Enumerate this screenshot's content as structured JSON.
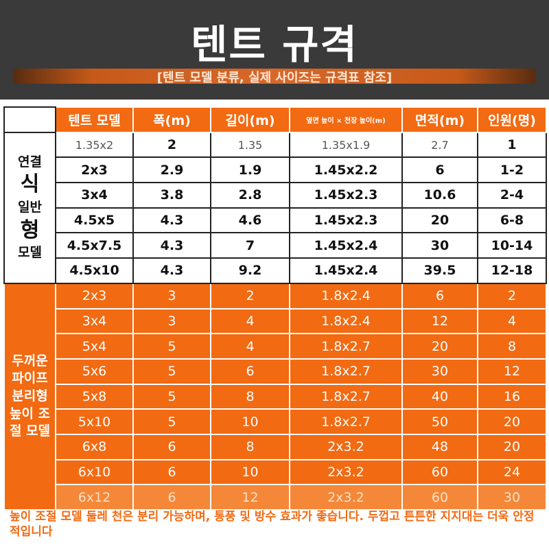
{
  "header": {
    "title": "텐트 규격",
    "subtitle": "[텐트 모델 분류, 실제 사이즈는 규격표 참조]"
  },
  "table": {
    "columns": [
      "텐트 모델",
      "폭(m)",
      "길이(m)",
      "옆면 높이 × 천장 높이(m)",
      "면적(m)",
      "인원(명)"
    ],
    "group1_label_lines": [
      "연결",
      "식",
      "일반",
      "형",
      "모델"
    ],
    "group2_label_lines": [
      "두꺼운",
      "파이프",
      "분리형",
      "높이 조",
      "절 모델"
    ],
    "group1_rows": [
      [
        "1.35x2",
        "2",
        "1.35",
        "1.35x1.9",
        "2.7",
        "1"
      ],
      [
        "2x3",
        "2.9",
        "1.9",
        "1.45x2.2",
        "6",
        "1-2"
      ],
      [
        "3x4",
        "3.8",
        "2.8",
        "1.45x2.3",
        "10.6",
        "2-4"
      ],
      [
        "4.5x5",
        "4.3",
        "4.6",
        "1.45x2.3",
        "20",
        "6-8"
      ],
      [
        "4.5x7.5",
        "4.3",
        "7",
        "1.45x2.4",
        "30",
        "10-14"
      ],
      [
        "4.5x10",
        "4.3",
        "9.2",
        "1.45x2.4",
        "39.5",
        "12-18"
      ]
    ],
    "group2_rows": [
      [
        "2x3",
        "3",
        "2",
        "1.8x2.4",
        "6",
        "2"
      ],
      [
        "3x4",
        "3",
        "4",
        "1.8x2.4",
        "12",
        "4"
      ],
      [
        "5x4",
        "5",
        "4",
        "1.8x2.7",
        "20",
        "8"
      ],
      [
        "5x6",
        "5",
        "6",
        "1.8x2.7",
        "30",
        "12"
      ],
      [
        "5x8",
        "5",
        "8",
        "1.8x2.7",
        "40",
        "16"
      ],
      [
        "5x10",
        "5",
        "10",
        "1.8x2.7",
        "50",
        "20"
      ],
      [
        "6x8",
        "6",
        "8",
        "2x3.2",
        "48",
        "20"
      ],
      [
        "6x10",
        "6",
        "10",
        "2x3.2",
        "60",
        "24"
      ],
      [
        "6x12",
        "6",
        "12",
        "2x3.2",
        "60",
        "30"
      ]
    ]
  },
  "footnote": {
    "size": "28inch",
    "text": "높이 조절 모델 둘레 천은 분리 가능하며, 통풍 및 방수 효과가 좋습니다. 두껍고 튼튼한 지지대는 더욱 안정적입니다"
  },
  "colors": {
    "accent": "#f26a12",
    "header_bg": "#3a3a3a"
  }
}
